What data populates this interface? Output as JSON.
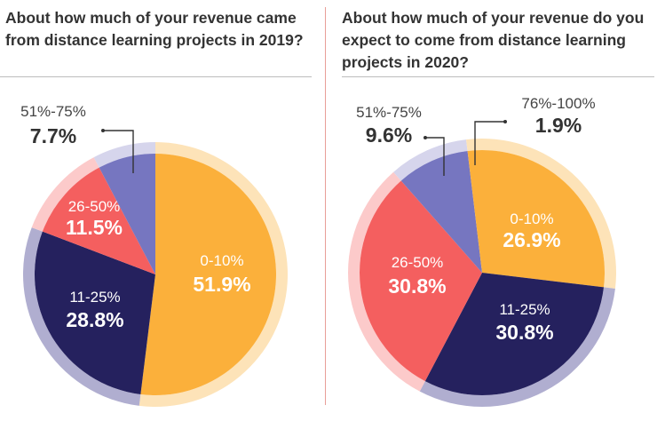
{
  "colors": {
    "orange": "#fbb03b",
    "orange_light": "#fde3b8",
    "navy": "#25215e",
    "navy_light": "#b0aed0",
    "coral": "#f45f5f",
    "coral_light": "#fccaca",
    "purple": "#7676c0",
    "purple_light": "#d6d5ec",
    "title": "#333333",
    "rule": "#bdbdbd",
    "divider": "#e89e98"
  },
  "chart_data": [
    {
      "type": "pie",
      "title": "About how much of your revenue came from distance learning projects in 2019?",
      "slices": [
        {
          "label": "0-10%",
          "value": 51.9,
          "value_label": "51.9%",
          "color": "orange"
        },
        {
          "label": "11-25%",
          "value": 28.8,
          "value_label": "28.8%",
          "color": "navy"
        },
        {
          "label": "26-50%",
          "value": 11.5,
          "value_label": "11.5%",
          "color": "coral"
        },
        {
          "label": "51%-75%",
          "value": 7.7,
          "value_label": "7.7%",
          "color": "purple"
        }
      ]
    },
    {
      "type": "pie",
      "title": "About how much of your revenue do you expect to come from distance learning projects in 2020?",
      "slices": [
        {
          "label": "0-10%",
          "value": 26.9,
          "value_label": "26.9%",
          "color": "orange"
        },
        {
          "label": "11-25%",
          "value": 30.8,
          "value_label": "30.8%",
          "color": "navy"
        },
        {
          "label": "26-50%",
          "value": 30.8,
          "value_label": "30.8%",
          "color": "coral"
        },
        {
          "label": "51%-75%",
          "value": 9.6,
          "value_label": "9.6%",
          "color": "purple"
        },
        {
          "label": "76%-100%",
          "value": 1.9,
          "value_label": "1.9%",
          "color": "orange"
        }
      ]
    }
  ]
}
